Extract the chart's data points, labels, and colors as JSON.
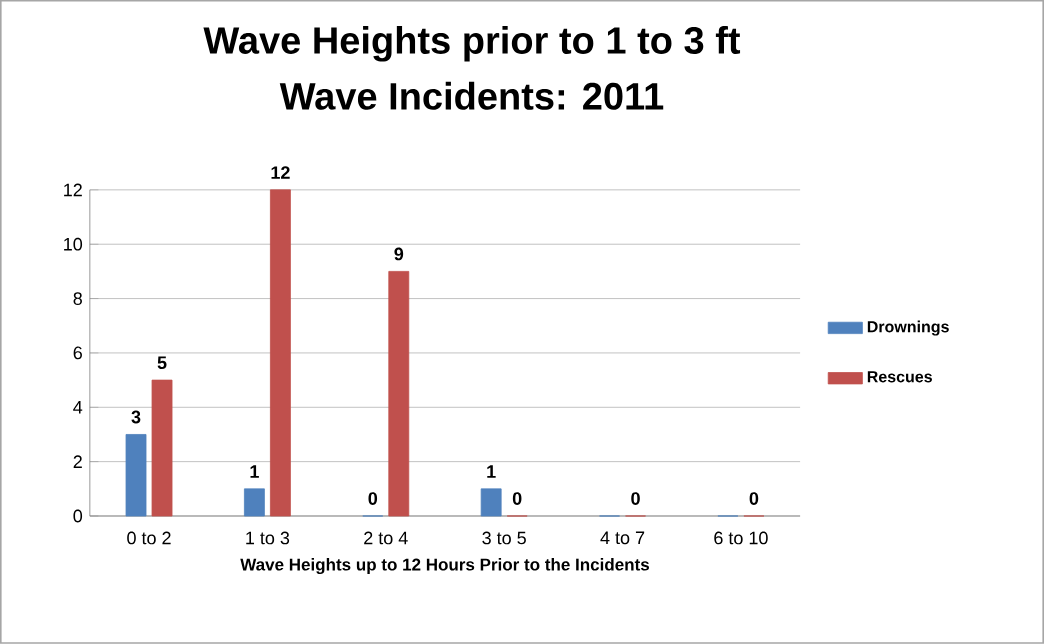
{
  "chart_data": {
    "type": "bar",
    "title": "Wave Heights prior to 1 to 3 ft",
    "subtitle": "Wave Incidents: 2011",
    "xlabel": "Wave Heights up to 12 Hours Prior to the Incidents",
    "categories": [
      "0 to 2",
      "1 to 3",
      "2 to 4",
      "3 to 5",
      "4 to 7",
      "6 to 10"
    ],
    "series": [
      {
        "name": "Drownings",
        "color": "#4f81bd",
        "values": [
          3,
          1,
          0,
          1,
          0,
          0
        ],
        "value_labels": [
          "3",
          "1",
          "0",
          "1",
          null,
          null
        ]
      },
      {
        "name": "Rescues",
        "color": "#c0504d",
        "values": [
          5,
          12,
          9,
          0,
          0,
          0
        ],
        "value_labels": [
          "5",
          "12",
          "9",
          "0",
          "0",
          "0"
        ]
      }
    ],
    "ylim": [
      0,
      12
    ],
    "yticks": [
      0,
      2,
      4,
      6,
      8,
      10,
      12
    ],
    "grid": "y",
    "legend": "right"
  }
}
